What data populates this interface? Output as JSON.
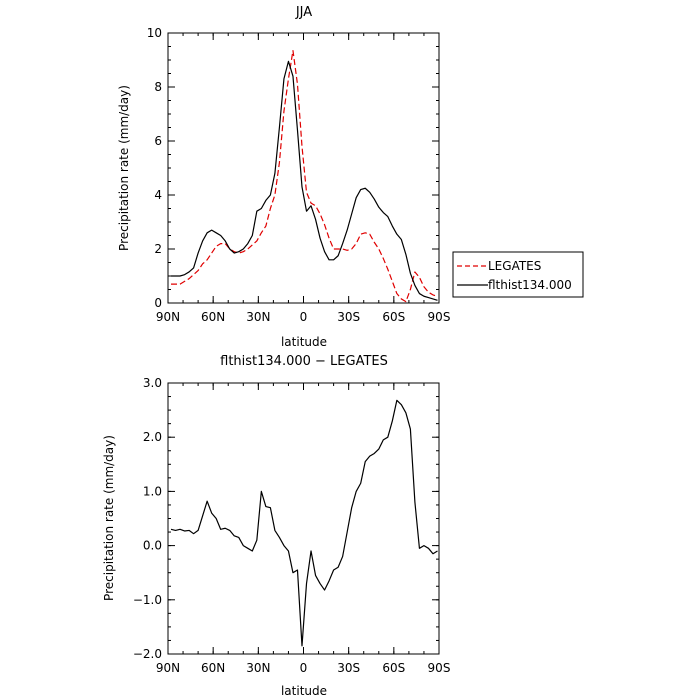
{
  "chart_data": [
    {
      "type": "line",
      "title": "JJA",
      "xlabel": "latitude",
      "ylabel": "Precipitation rate (mm/day)",
      "x_range": [
        90,
        -90
      ],
      "ylim": [
        0,
        10
      ],
      "x_ticks": [
        {
          "value": 90,
          "label": "90N"
        },
        {
          "value": 60,
          "label": "60N"
        },
        {
          "value": 30,
          "label": "30N"
        },
        {
          "value": 0,
          "label": "0"
        },
        {
          "value": -30,
          "label": "30S"
        },
        {
          "value": -60,
          "label": "60S"
        },
        {
          "value": -90,
          "label": "90S"
        }
      ],
      "y_ticks": [
        {
          "value": 0,
          "label": "0"
        },
        {
          "value": 2,
          "label": "2"
        },
        {
          "value": 4,
          "label": "4"
        },
        {
          "value": 6,
          "label": "6"
        },
        {
          "value": 8,
          "label": "8"
        },
        {
          "value": 10,
          "label": "10"
        }
      ],
      "grid": false,
      "legend": {
        "placement": "right"
      },
      "series": [
        {
          "name": "LEGATES",
          "color": "#e00000",
          "dash": "dashed",
          "x": [
            88,
            85,
            82,
            79,
            76,
            73,
            70,
            67,
            64,
            61,
            58,
            55,
            52,
            49,
            46,
            43,
            40,
            37,
            34,
            31,
            28,
            25,
            22,
            19,
            16,
            13,
            10,
            7,
            4,
            1,
            -2,
            -5,
            -8,
            -11,
            -14,
            -17,
            -20,
            -23,
            -26,
            -29,
            -32,
            -35,
            -38,
            -41,
            -44,
            -47,
            -50,
            -53,
            -56,
            -59,
            -62,
            -65,
            -68,
            -71,
            -74,
            -77,
            -80,
            -83,
            -86,
            -89
          ],
          "y": [
            0.7,
            0.7,
            0.7,
            0.8,
            0.9,
            1.05,
            1.2,
            1.45,
            1.6,
            1.85,
            2.1,
            2.2,
            2.2,
            2.0,
            1.9,
            1.85,
            1.9,
            2.0,
            2.15,
            2.3,
            2.6,
            2.85,
            3.5,
            4.0,
            5.2,
            7.1,
            8.3,
            9.35,
            8.1,
            5.8,
            4.1,
            3.7,
            3.6,
            3.3,
            2.9,
            2.4,
            2.0,
            2.0,
            2.0,
            1.95,
            2.0,
            2.2,
            2.55,
            2.6,
            2.55,
            2.25,
            2.0,
            1.65,
            1.25,
            0.8,
            0.35,
            0.15,
            0.05,
            0.5,
            1.15,
            0.95,
            0.6,
            0.4,
            0.3,
            0.25
          ]
        },
        {
          "name": "flthist134.000",
          "color": "#000000",
          "dash": "solid",
          "x": [
            88,
            85,
            82,
            79,
            76,
            73,
            70,
            67,
            64,
            61,
            58,
            55,
            52,
            49,
            46,
            43,
            40,
            37,
            34,
            31,
            28,
            25,
            22,
            19,
            16,
            13,
            10,
            7,
            4,
            1,
            -2,
            -5,
            -8,
            -11,
            -14,
            -17,
            -20,
            -23,
            -26,
            -29,
            -32,
            -35,
            -38,
            -41,
            -44,
            -47,
            -50,
            -53,
            -56,
            -59,
            -62,
            -65,
            -68,
            -71,
            -74,
            -77,
            -80,
            -83,
            -86,
            -89
          ],
          "y": [
            1.0,
            1.0,
            1.0,
            1.05,
            1.15,
            1.3,
            1.85,
            2.3,
            2.6,
            2.7,
            2.6,
            2.5,
            2.3,
            2.0,
            1.85,
            1.9,
            2.0,
            2.2,
            2.5,
            3.4,
            3.5,
            3.8,
            4.0,
            4.8,
            6.5,
            8.3,
            8.95,
            8.4,
            6.4,
            4.3,
            3.4,
            3.6,
            3.1,
            2.4,
            1.9,
            1.6,
            1.6,
            1.75,
            2.2,
            2.7,
            3.3,
            3.9,
            4.2,
            4.25,
            4.1,
            3.85,
            3.55,
            3.35,
            3.2,
            2.85,
            2.55,
            2.35,
            1.8,
            1.1,
            0.65,
            0.35,
            0.25,
            0.2,
            0.15,
            0.1
          ]
        }
      ]
    },
    {
      "type": "line",
      "title": "flthist134.000 − LEGATES",
      "xlabel": "latitude",
      "ylabel": "Precipitation rate (mm/day)",
      "x_range": [
        90,
        -90
      ],
      "ylim": [
        -2,
        3
      ],
      "x_ticks": [
        {
          "value": 90,
          "label": "90N"
        },
        {
          "value": 60,
          "label": "60N"
        },
        {
          "value": 30,
          "label": "30N"
        },
        {
          "value": 0,
          "label": "0"
        },
        {
          "value": -30,
          "label": "30S"
        },
        {
          "value": -60,
          "label": "60S"
        },
        {
          "value": -90,
          "label": "90S"
        }
      ],
      "y_ticks": [
        {
          "value": -2,
          "label": "−2.0"
        },
        {
          "value": -1,
          "label": "−1.0"
        },
        {
          "value": 0,
          "label": "0.0"
        },
        {
          "value": 1,
          "label": "1.0"
        },
        {
          "value": 2,
          "label": "2.0"
        },
        {
          "value": 3,
          "label": "3.0"
        }
      ],
      "grid": false,
      "series": [
        {
          "color": "#000000",
          "dash": "solid",
          "x": [
            88,
            85,
            82,
            79,
            76,
            73,
            70,
            67,
            64,
            61,
            58,
            55,
            52,
            49,
            46,
            43,
            40,
            37,
            34,
            31,
            28,
            25,
            22,
            19,
            16,
            13,
            10,
            7,
            4,
            1,
            -2,
            -5,
            -8,
            -11,
            -14,
            -17,
            -20,
            -23,
            -26,
            -29,
            -32,
            -35,
            -38,
            -41,
            -44,
            -47,
            -50,
            -53,
            -56,
            -59,
            -62,
            -65,
            -68,
            -71,
            -74,
            -77,
            -80,
            -83,
            -86,
            -89
          ],
          "y": [
            0.3,
            0.28,
            0.3,
            0.27,
            0.28,
            0.22,
            0.28,
            0.55,
            0.82,
            0.6,
            0.5,
            0.3,
            0.32,
            0.28,
            0.18,
            0.15,
            0.0,
            -0.05,
            -0.1,
            0.1,
            1.0,
            0.72,
            0.7,
            0.28,
            0.15,
            0.0,
            -0.1,
            -0.5,
            -0.45,
            -1.85,
            -0.7,
            -0.1,
            -0.55,
            -0.7,
            -0.82,
            -0.65,
            -0.45,
            -0.4,
            -0.2,
            0.25,
            0.7,
            1.0,
            1.15,
            1.55,
            1.65,
            1.7,
            1.78,
            1.95,
            2.0,
            2.3,
            2.68,
            2.6,
            2.45,
            2.15,
            0.8,
            -0.05,
            0.0,
            -0.05,
            -0.15,
            -0.1
          ]
        }
      ]
    }
  ]
}
